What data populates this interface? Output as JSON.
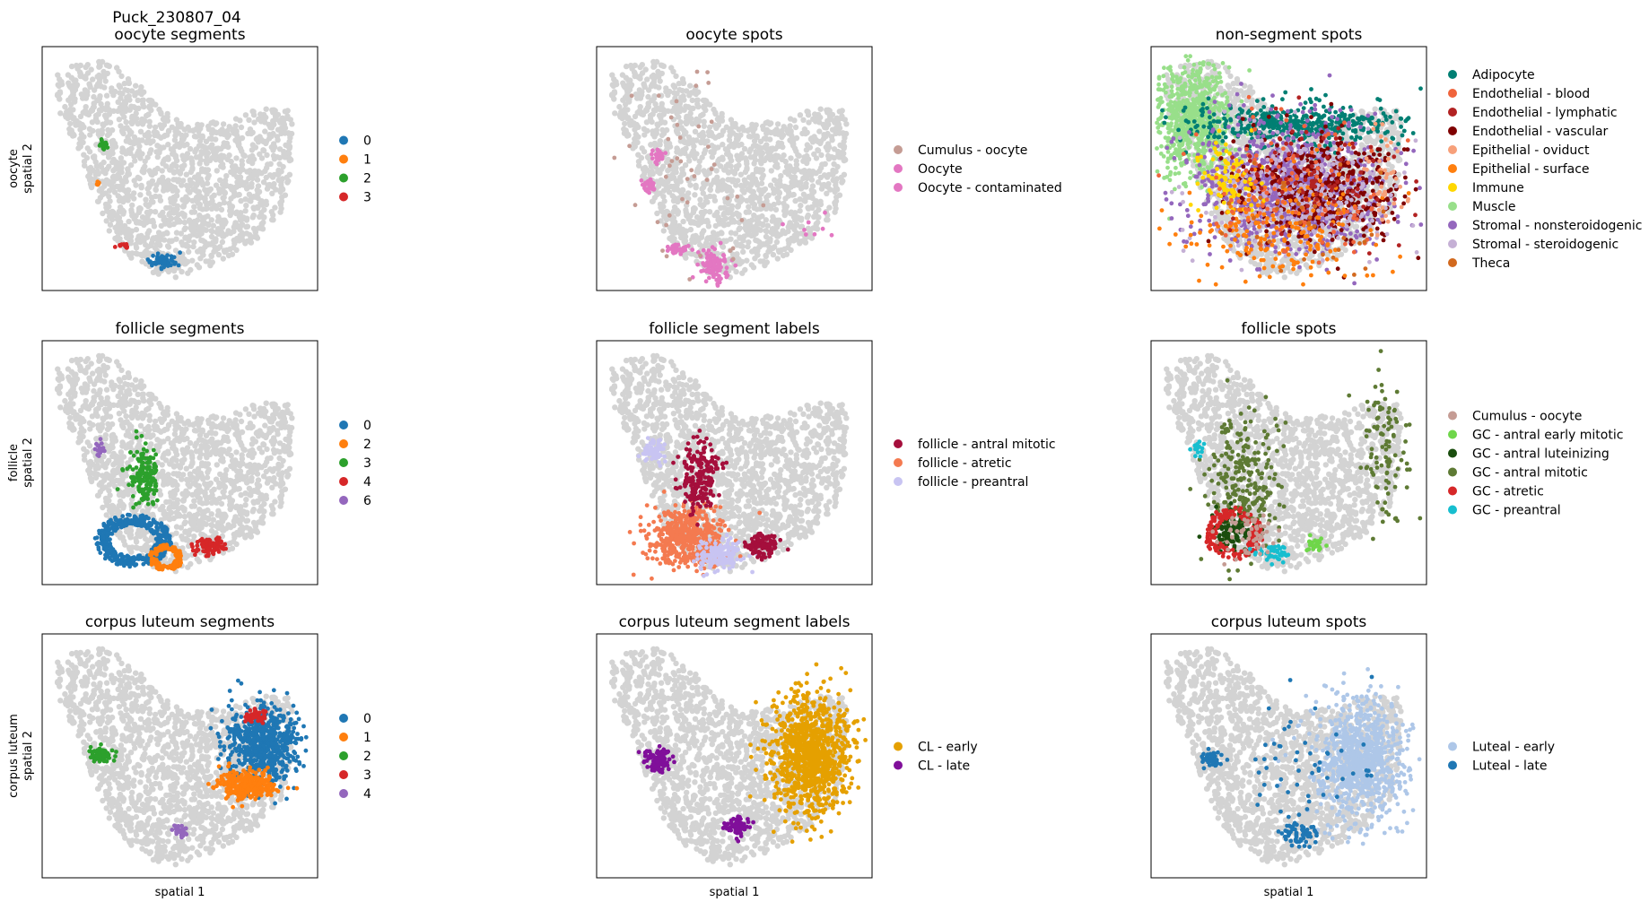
{
  "figure_title": "Puck_230807_04",
  "chart_data": [
    {
      "type": "scatter",
      "title": "oocyte segments",
      "xlabel": "",
      "ylabel": "oocyte\nspatial 2",
      "background_color": "#d3d3d3",
      "legend_position": "right",
      "legend": [
        {
          "label": "0",
          "color": "#1f77b4"
        },
        {
          "label": "1",
          "color": "#ff7f0e"
        },
        {
          "label": "2",
          "color": "#2ca02c"
        },
        {
          "label": "3",
          "color": "#d62728"
        }
      ],
      "clusters": [
        {
          "label": "0",
          "color": "#1f77b4",
          "center": [
            0.44,
            0.88
          ],
          "spread": [
            0.03,
            0.02
          ],
          "count": 55
        },
        {
          "label": "1",
          "color": "#ff7f0e",
          "center": [
            0.2,
            0.56
          ],
          "spread": [
            0.005,
            0.006
          ],
          "count": 5
        },
        {
          "label": "2",
          "color": "#2ca02c",
          "center": [
            0.22,
            0.4
          ],
          "spread": [
            0.012,
            0.015
          ],
          "count": 18
        },
        {
          "label": "3",
          "color": "#d62728",
          "center": [
            0.3,
            0.82
          ],
          "spread": [
            0.025,
            0.008
          ],
          "count": 10
        }
      ]
    },
    {
      "type": "scatter",
      "title": "oocyte spots",
      "xlabel": "",
      "ylabel": "",
      "background_color": "#d3d3d3",
      "legend_position": "right",
      "legend": [
        {
          "label": "Cumulus - oocyte",
          "color": "#c59c94"
        },
        {
          "label": "Oocyte",
          "color": "#e377c2"
        },
        {
          "label": "Oocyte - contaminated",
          "color": "#e377c2"
        }
      ],
      "clusters": [
        {
          "label": "Oocyte",
          "color": "#e377c2",
          "center": [
            0.43,
            0.9
          ],
          "spread": [
            0.035,
            0.04
          ],
          "count": 90
        },
        {
          "label": "Oocyte",
          "color": "#e377c2",
          "center": [
            0.29,
            0.83
          ],
          "spread": [
            0.03,
            0.015
          ],
          "count": 30
        },
        {
          "label": "Oocyte",
          "color": "#e377c2",
          "center": [
            0.22,
            0.45
          ],
          "spread": [
            0.015,
            0.02
          ],
          "count": 30
        },
        {
          "label": "Oocyte",
          "color": "#e377c2",
          "center": [
            0.19,
            0.57
          ],
          "spread": [
            0.013,
            0.02
          ],
          "count": 30
        },
        {
          "label": "Cumulus - oocyte",
          "color": "#c59c94",
          "center": [
            0.34,
            0.55
          ],
          "spread": [
            0.14,
            0.3
          ],
          "count": 45
        },
        {
          "label": "Oocyte - contaminated",
          "color": "#e377c2",
          "center": [
            0.75,
            0.72
          ],
          "spread": [
            0.08,
            0.05
          ],
          "count": 8
        }
      ]
    },
    {
      "type": "scatter",
      "title": "non-segment spots",
      "xlabel": "",
      "ylabel": "",
      "background_color": "#d3d3d3",
      "legend_position": "right",
      "legend": [
        {
          "label": "Adipocyte",
          "color": "#007f73"
        },
        {
          "label": "Endothelial - blood",
          "color": "#f0643c"
        },
        {
          "label": "Endothelial - lymphatic",
          "color": "#b22222"
        },
        {
          "label": "Endothelial - vascular",
          "color": "#7f0000"
        },
        {
          "label": "Epithelial - oviduct",
          "color": "#f7a07a"
        },
        {
          "label": "Epithelial - surface",
          "color": "#ff7f0e"
        },
        {
          "label": "Immune",
          "color": "#ffd700"
        },
        {
          "label": "Muscle",
          "color": "#98df8a"
        },
        {
          "label": "Stromal - nonsteroidogenic",
          "color": "#9467bd"
        },
        {
          "label": "Stromal - steroidogenic",
          "color": "#c5b0d5"
        },
        {
          "label": "Theca",
          "color": "#d2691e"
        }
      ],
      "clusters": [
        {
          "label": "Muscle",
          "color": "#98df8a",
          "center": [
            0.15,
            0.3
          ],
          "spread": [
            0.09,
            0.14
          ],
          "count": 700
        },
        {
          "label": "Adipocyte",
          "color": "#007f73",
          "center": [
            0.52,
            0.32
          ],
          "spread": [
            0.24,
            0.06
          ],
          "count": 450
        },
        {
          "label": "Stromal - nonsteroidogenic",
          "color": "#9467bd",
          "center": [
            0.5,
            0.58
          ],
          "spread": [
            0.2,
            0.16
          ],
          "count": 1000
        },
        {
          "label": "Endothelial - vascular",
          "color": "#7f0000",
          "center": [
            0.62,
            0.58
          ],
          "spread": [
            0.18,
            0.14
          ],
          "count": 450
        },
        {
          "label": "Stromal - steroidogenic",
          "color": "#c5b0d5",
          "center": [
            0.55,
            0.62
          ],
          "spread": [
            0.2,
            0.15
          ],
          "count": 300
        },
        {
          "label": "Epithelial - surface",
          "color": "#ff7f0e",
          "center": [
            0.45,
            0.75
          ],
          "spread": [
            0.22,
            0.14
          ],
          "count": 220
        },
        {
          "label": "Immune",
          "color": "#ffd700",
          "center": [
            0.28,
            0.55
          ],
          "spread": [
            0.07,
            0.08
          ],
          "count": 90
        },
        {
          "label": "Endothelial - blood",
          "color": "#f0643c",
          "center": [
            0.5,
            0.6
          ],
          "spread": [
            0.25,
            0.18
          ],
          "count": 120
        },
        {
          "label": "Endothelial - lymphatic",
          "color": "#b22222",
          "center": [
            0.6,
            0.55
          ],
          "spread": [
            0.2,
            0.15
          ],
          "count": 90
        },
        {
          "label": "Epithelial - oviduct",
          "color": "#f7a07a",
          "center": [
            0.85,
            0.55
          ],
          "spread": [
            0.05,
            0.12
          ],
          "count": 40
        },
        {
          "label": "Theca",
          "color": "#d2691e",
          "center": [
            0.55,
            0.7
          ],
          "spread": [
            0.2,
            0.15
          ],
          "count": 40
        }
      ]
    },
    {
      "type": "scatter",
      "title": "follicle segments",
      "xlabel": "",
      "ylabel": "follicle\nspatial 2",
      "background_color": "#d3d3d3",
      "legend_position": "right",
      "legend": [
        {
          "label": "0",
          "color": "#1f77b4"
        },
        {
          "label": "2",
          "color": "#ff7f0e"
        },
        {
          "label": "3",
          "color": "#2ca02c"
        },
        {
          "label": "4",
          "color": "#d62728"
        },
        {
          "label": "6",
          "color": "#9467bd"
        }
      ],
      "clusters": [
        {
          "label": "0",
          "color": "#1f77b4",
          "center": [
            0.33,
            0.82
          ],
          "spread": [
            0.09,
            0.07
          ],
          "count": 420,
          "ring": true
        },
        {
          "label": "2",
          "color": "#ff7f0e",
          "center": [
            0.45,
            0.89
          ],
          "spread": [
            0.04,
            0.035
          ],
          "count": 120,
          "ring": true
        },
        {
          "label": "3",
          "color": "#2ca02c",
          "center": [
            0.37,
            0.55
          ],
          "spread": [
            0.035,
            0.08
          ],
          "count": 150
        },
        {
          "label": "4",
          "color": "#d62728",
          "center": [
            0.61,
            0.84
          ],
          "spread": [
            0.035,
            0.025
          ],
          "count": 90
        },
        {
          "label": "6",
          "color": "#9467bd",
          "center": [
            0.21,
            0.45
          ],
          "spread": [
            0.012,
            0.02
          ],
          "count": 20
        }
      ]
    },
    {
      "type": "scatter",
      "title": "follicle segment labels",
      "xlabel": "",
      "ylabel": "",
      "background_color": "#d3d3d3",
      "legend_position": "right",
      "legend": [
        {
          "label": "follicle - antral mitotic",
          "color": "#a50f3c"
        },
        {
          "label": "follicle - atretic",
          "color": "#f47a50"
        },
        {
          "label": "follicle - preantral",
          "color": "#c8c4f2"
        }
      ],
      "clusters": [
        {
          "label": "follicle - atretic",
          "color": "#f47a50",
          "center": [
            0.32,
            0.81
          ],
          "spread": [
            0.09,
            0.08
          ],
          "count": 500
        },
        {
          "label": "follicle - preantral",
          "color": "#c8c4f2",
          "center": [
            0.45,
            0.88
          ],
          "spread": [
            0.05,
            0.04
          ],
          "count": 160
        },
        {
          "label": "follicle - preantral",
          "color": "#c8c4f2",
          "center": [
            0.21,
            0.45
          ],
          "spread": [
            0.025,
            0.03
          ],
          "count": 60
        },
        {
          "label": "follicle - antral mitotic",
          "color": "#a50f3c",
          "center": [
            0.37,
            0.56
          ],
          "spread": [
            0.04,
            0.09
          ],
          "count": 200
        },
        {
          "label": "follicle - antral mitotic",
          "color": "#a50f3c",
          "center": [
            0.6,
            0.84
          ],
          "spread": [
            0.04,
            0.03
          ],
          "count": 110
        }
      ]
    },
    {
      "type": "scatter",
      "title": "follicle spots",
      "xlabel": "",
      "ylabel": "",
      "background_color": "#d3d3d3",
      "legend_position": "right",
      "legend": [
        {
          "label": "Cumulus - oocyte",
          "color": "#c59c94"
        },
        {
          "label": "GC - antral early mitotic",
          "color": "#6fd64a"
        },
        {
          "label": "GC - antral luteinizing",
          "color": "#1a4d0e"
        },
        {
          "label": "GC - antral mitotic",
          "color": "#5e7a34"
        },
        {
          "label": "GC - atretic",
          "color": "#d62728"
        },
        {
          "label": "GC - preantral",
          "color": "#17becf"
        }
      ],
      "clusters": [
        {
          "label": "GC - antral mitotic",
          "color": "#5e7a34",
          "center": [
            0.34,
            0.58
          ],
          "spread": [
            0.08,
            0.16
          ],
          "count": 260
        },
        {
          "label": "GC - antral mitotic",
          "color": "#5e7a34",
          "center": [
            0.85,
            0.45
          ],
          "spread": [
            0.05,
            0.18
          ],
          "count": 100
        },
        {
          "label": "GC - antral luteinizing",
          "color": "#1a4d0e",
          "center": [
            0.3,
            0.78
          ],
          "spread": [
            0.05,
            0.05
          ],
          "count": 120
        },
        {
          "label": "GC - atretic",
          "color": "#d62728",
          "center": [
            0.3,
            0.79
          ],
          "spread": [
            0.07,
            0.07
          ],
          "count": 160,
          "ring": true
        },
        {
          "label": "GC - antral early mitotic",
          "color": "#6fd64a",
          "center": [
            0.6,
            0.84
          ],
          "spread": [
            0.02,
            0.02
          ],
          "count": 30
        },
        {
          "label": "GC - preantral",
          "color": "#17becf",
          "center": [
            0.45,
            0.87
          ],
          "spread": [
            0.05,
            0.03
          ],
          "count": 40
        },
        {
          "label": "GC - preantral",
          "color": "#17becf",
          "center": [
            0.17,
            0.44
          ],
          "spread": [
            0.015,
            0.02
          ],
          "count": 15
        },
        {
          "label": "Cumulus - oocyte",
          "color": "#c59c94",
          "center": [
            0.36,
            0.8
          ],
          "spread": [
            0.06,
            0.06
          ],
          "count": 60
        }
      ]
    },
    {
      "type": "scatter",
      "title": "corpus luteum segments",
      "xlabel": "spatial 1",
      "ylabel": "corpus luteum\nspatial 2",
      "background_color": "#d3d3d3",
      "legend_position": "right",
      "legend": [
        {
          "label": "0",
          "color": "#1f77b4"
        },
        {
          "label": "1",
          "color": "#ff7f0e"
        },
        {
          "label": "2",
          "color": "#2ca02c"
        },
        {
          "label": "3",
          "color": "#d62728"
        },
        {
          "label": "4",
          "color": "#9467bd"
        }
      ],
      "clusters": [
        {
          "label": "0",
          "color": "#1f77b4",
          "center": [
            0.8,
            0.45
          ],
          "spread": [
            0.08,
            0.1
          ],
          "count": 650
        },
        {
          "label": "1",
          "color": "#ff7f0e",
          "center": [
            0.74,
            0.62
          ],
          "spread": [
            0.06,
            0.035
          ],
          "count": 320
        },
        {
          "label": "2",
          "color": "#2ca02c",
          "center": [
            0.21,
            0.5
          ],
          "spread": [
            0.025,
            0.02
          ],
          "count": 70
        },
        {
          "label": "3",
          "color": "#d62728",
          "center": [
            0.77,
            0.34
          ],
          "spread": [
            0.025,
            0.018
          ],
          "count": 45
        },
        {
          "label": "4",
          "color": "#9467bd",
          "center": [
            0.5,
            0.81
          ],
          "spread": [
            0.015,
            0.015
          ],
          "count": 30
        }
      ]
    },
    {
      "type": "scatter",
      "title": "corpus luteum segment labels",
      "xlabel": "spatial 1",
      "ylabel": "",
      "background_color": "#d3d3d3",
      "legend_position": "right",
      "legend": [
        {
          "label": "CL - early",
          "color": "#e5a000"
        },
        {
          "label": "CL - late",
          "color": "#800f9a"
        }
      ],
      "clusters": [
        {
          "label": "CL - early",
          "color": "#e5a000",
          "center": [
            0.78,
            0.5
          ],
          "spread": [
            0.09,
            0.15
          ],
          "count": 1000
        },
        {
          "label": "CL - late",
          "color": "#800f9a",
          "center": [
            0.22,
            0.52
          ],
          "spread": [
            0.03,
            0.03
          ],
          "count": 90
        },
        {
          "label": "CL - late",
          "color": "#800f9a",
          "center": [
            0.51,
            0.79
          ],
          "spread": [
            0.025,
            0.025
          ],
          "count": 80
        }
      ]
    },
    {
      "type": "scatter",
      "title": "corpus luteum spots",
      "xlabel": "spatial 1",
      "ylabel": "",
      "background_color": "#d3d3d3",
      "legend_position": "right",
      "legend": [
        {
          "label": "Luteal - early",
          "color": "#aec7e8"
        },
        {
          "label": "Luteal - late",
          "color": "#1f77b4"
        }
      ],
      "clusters": [
        {
          "label": "Luteal - early",
          "color": "#aec7e8",
          "center": [
            0.76,
            0.52
          ],
          "spread": [
            0.1,
            0.15
          ],
          "count": 900
        },
        {
          "label": "Luteal - late",
          "color": "#1f77b4",
          "center": [
            0.22,
            0.51
          ],
          "spread": [
            0.02,
            0.02
          ],
          "count": 45
        },
        {
          "label": "Luteal - late",
          "color": "#1f77b4",
          "center": [
            0.53,
            0.82
          ],
          "spread": [
            0.04,
            0.03
          ],
          "count": 60
        },
        {
          "label": "Luteal - late",
          "color": "#1f77b4",
          "center": [
            0.55,
            0.55
          ],
          "spread": [
            0.18,
            0.2
          ],
          "count": 55
        }
      ]
    }
  ]
}
